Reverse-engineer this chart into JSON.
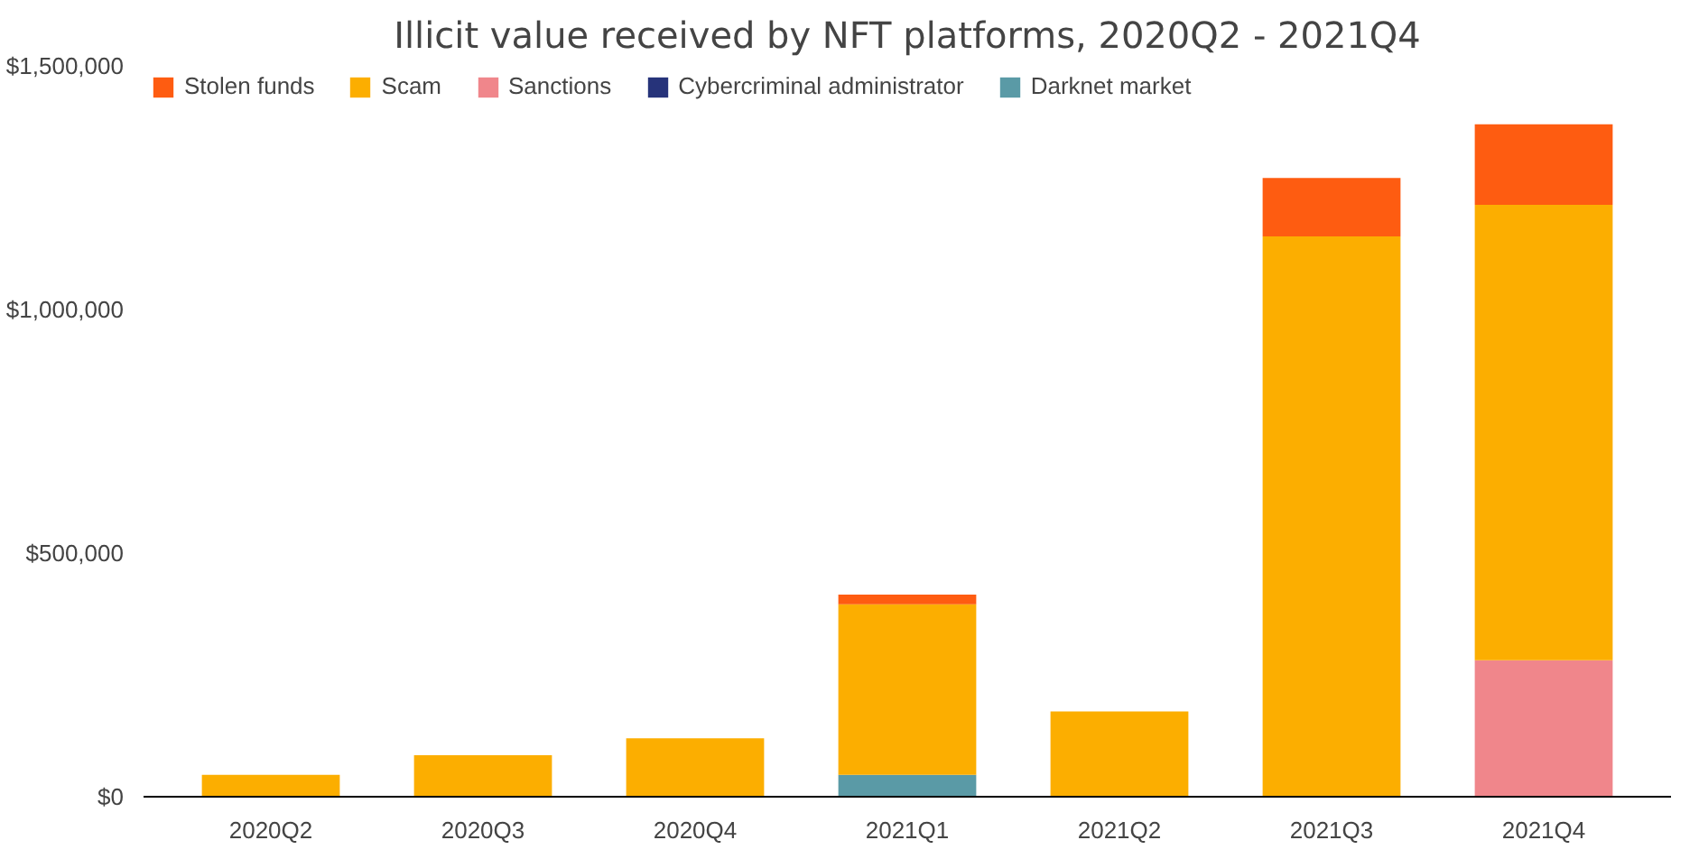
{
  "chart_data": {
    "type": "bar",
    "title": "Illicit value received by NFT platforms, 2020Q2 - 2021Q4",
    "stacked": true,
    "legend": "top left",
    "grid": false,
    "categories": [
      "2020Q2",
      "2020Q3",
      "2020Q4",
      "2021Q1",
      "2021Q2",
      "2021Q3",
      "2021Q4"
    ],
    "ylim": [
      0,
      1500000
    ],
    "yticks": [
      {
        "value": 0,
        "label": "$0"
      },
      {
        "value": 500000,
        "label": "$500,000"
      },
      {
        "value": 1000000,
        "label": "$1,000,000"
      },
      {
        "value": 1500000,
        "label": "$1,500,000"
      }
    ],
    "series": [
      {
        "name": "Darknet market",
        "color": "#5a9aa6",
        "values": [
          0,
          0,
          0,
          45000,
          0,
          0,
          0
        ]
      },
      {
        "name": "Cybercriminal administrator",
        "color": "#26337a",
        "values": [
          0,
          0,
          0,
          0,
          0,
          0,
          0
        ]
      },
      {
        "name": "Sanctions",
        "color": "#f0868b",
        "values": [
          0,
          0,
          0,
          0,
          0,
          0,
          280000
        ]
      },
      {
        "name": "Scam",
        "color": "#fcae00",
        "values": [
          45000,
          85000,
          120000,
          350000,
          175000,
          1150000,
          935000
        ]
      },
      {
        "name": "Stolen funds",
        "color": "#fe5c11",
        "values": [
          0,
          0,
          0,
          20000,
          0,
          120000,
          165000
        ]
      }
    ]
  }
}
